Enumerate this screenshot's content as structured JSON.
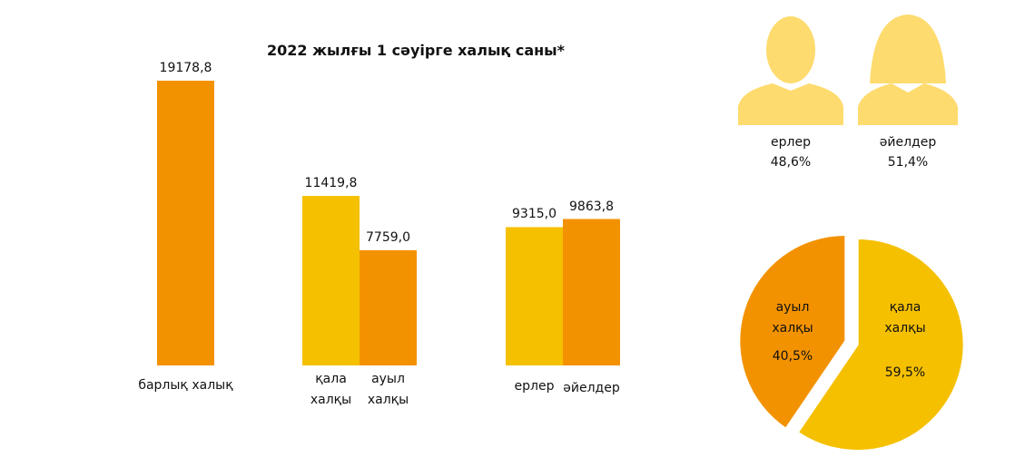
{
  "chart_data": [
    {
      "type": "bar",
      "title": "2022 жылғы 1 сәуірге халық саны*",
      "categories": [
        "барлық халық",
        "қала халқы",
        "ауыл халқы",
        "ерлер",
        "әйелдер"
      ],
      "values": [
        19178.8,
        11419.8,
        7759.0,
        9315.0,
        9863.8
      ],
      "value_labels": [
        "19178,8",
        "11419,8",
        "7759,0",
        "9315,0",
        "9863,8"
      ],
      "colors": [
        "#f39200",
        "#f5c000",
        "#f39200",
        "#f5c000",
        "#f39200"
      ]
    },
    {
      "type": "pie",
      "categories": [
        "ауыл халқы",
        "қала халқы"
      ],
      "values": [
        40.5,
        59.5
      ],
      "value_labels": [
        "40,5%",
        "59,5%"
      ],
      "colors": [
        "#f39200",
        "#f5c000"
      ]
    },
    {
      "type": "pictogram",
      "categories": [
        "ерлер",
        "әйелдер"
      ],
      "values": [
        48.6,
        51.4
      ],
      "value_labels": [
        "48,6%",
        "51,4%"
      ],
      "color": "#fedb6e"
    }
  ]
}
